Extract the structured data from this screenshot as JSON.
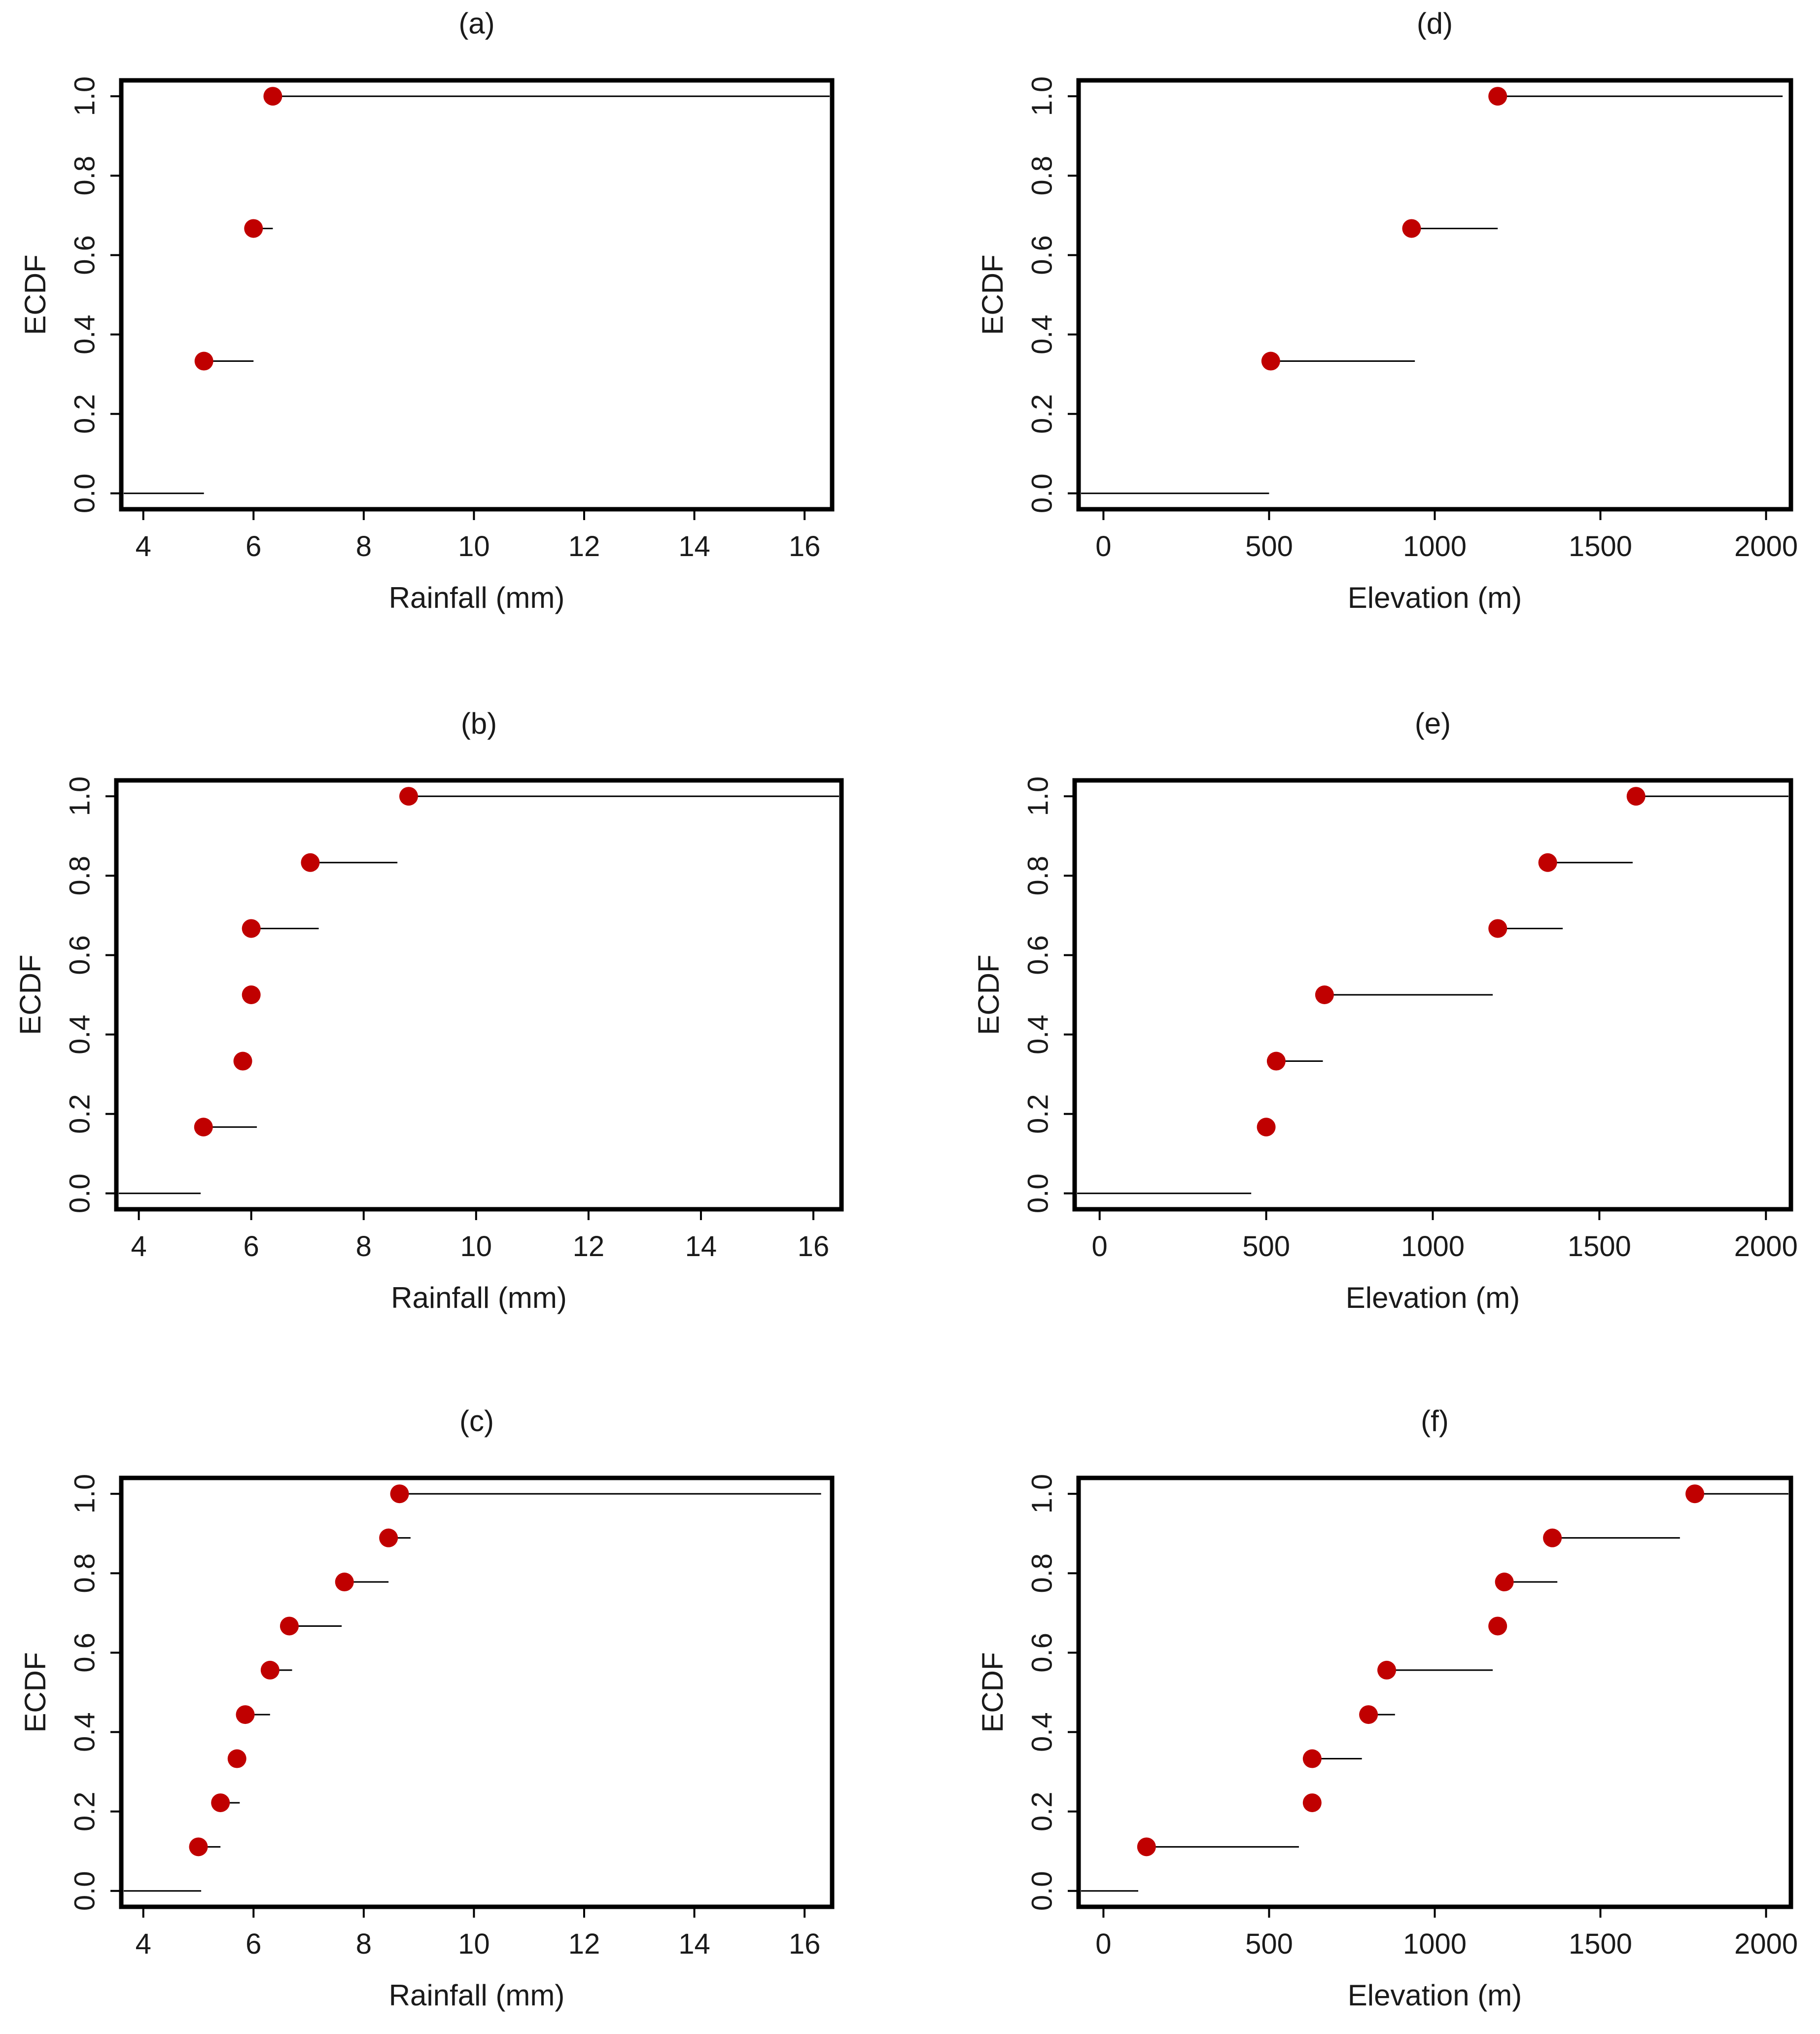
{
  "colors": {
    "point": "#c00000",
    "line": "#000000",
    "frame": "#000000"
  },
  "chart_data": [
    {
      "type": "scatter",
      "subtype": "step-ecdf",
      "title": "(a)",
      "xlabel": "Rainfall (mm)",
      "ylabel": "ECDF",
      "xlim": [
        3.6,
        16.5
      ],
      "ylim": [
        -0.04,
        1.04
      ],
      "xticks": [
        "4",
        "6",
        "8",
        "10",
        "12",
        "14",
        "16"
      ],
      "yticks": [
        "0.0",
        "0.2",
        "0.4",
        "0.6",
        "0.8",
        "1.0"
      ],
      "xtick_values": [
        4,
        6,
        8,
        10,
        12,
        14,
        16
      ],
      "ytick_values": [
        0,
        0.2,
        0.4,
        0.6,
        0.8,
        1.0
      ],
      "lead_in": [
        3.6,
        5.1
      ],
      "points": [
        {
          "x": 5.1,
          "y": 0.333,
          "end": 6.0
        },
        {
          "x": 6.0,
          "y": 0.667,
          "end": 6.35
        },
        {
          "x": 6.35,
          "y": 1.0,
          "end": 16.5
        }
      ]
    },
    {
      "type": "scatter",
      "subtype": "step-ecdf",
      "title": "(b)",
      "xlabel": "Rainfall (mm)",
      "ylabel": "ECDF",
      "xlim": [
        3.6,
        16.5
      ],
      "ylim": [
        -0.04,
        1.04
      ],
      "xticks": [
        "4",
        "6",
        "8",
        "10",
        "12",
        "14",
        "16"
      ],
      "yticks": [
        "0.0",
        "0.2",
        "0.4",
        "0.6",
        "0.8",
        "1.0"
      ],
      "xtick_values": [
        4,
        6,
        8,
        10,
        12,
        14,
        16
      ],
      "ytick_values": [
        0,
        0.2,
        0.4,
        0.6,
        0.8,
        1.0
      ],
      "lead_in": [
        3.6,
        5.1
      ],
      "points": [
        {
          "x": 5.15,
          "y": 0.167,
          "end": 6.1
        },
        {
          "x": 5.85,
          "y": 0.333,
          "end": null
        },
        {
          "x": 6.0,
          "y": 0.5,
          "end": null
        },
        {
          "x": 6.0,
          "y": 0.667,
          "end": 7.2
        },
        {
          "x": 7.05,
          "y": 0.833,
          "end": 8.6
        },
        {
          "x": 8.8,
          "y": 1.0,
          "end": 16.5
        }
      ]
    },
    {
      "type": "scatter",
      "subtype": "step-ecdf",
      "title": "(c)",
      "xlabel": "Rainfall (mm)",
      "ylabel": "ECDF",
      "xlim": [
        3.6,
        16.5
      ],
      "ylim": [
        -0.04,
        1.04
      ],
      "xticks": [
        "4",
        "6",
        "8",
        "10",
        "12",
        "14",
        "16"
      ],
      "yticks": [
        "0.0",
        "0.2",
        "0.4",
        "0.6",
        "0.8",
        "1.0"
      ],
      "xtick_values": [
        4,
        6,
        8,
        10,
        12,
        14,
        16
      ],
      "ytick_values": [
        0,
        0.2,
        0.4,
        0.6,
        0.8,
        1.0
      ],
      "lead_in": [
        3.6,
        5.05
      ],
      "points": [
        {
          "x": 5.0,
          "y": 0.111,
          "end": 5.4
        },
        {
          "x": 5.4,
          "y": 0.222,
          "end": 5.75
        },
        {
          "x": 5.7,
          "y": 0.333,
          "end": null
        },
        {
          "x": 5.85,
          "y": 0.444,
          "end": 6.3
        },
        {
          "x": 6.3,
          "y": 0.556,
          "end": 6.7
        },
        {
          "x": 6.65,
          "y": 0.667,
          "end": 7.6
        },
        {
          "x": 7.65,
          "y": 0.778,
          "end": 8.45
        },
        {
          "x": 8.45,
          "y": 0.889,
          "end": 8.85
        },
        {
          "x": 8.65,
          "y": 1.0,
          "end": 16.3
        }
      ]
    },
    {
      "type": "scatter",
      "subtype": "step-ecdf",
      "title": "(d)",
      "xlabel": "Elevation (m)",
      "ylabel": "ECDF",
      "xlim": [
        -75,
        2075
      ],
      "ylim": [
        -0.04,
        1.04
      ],
      "xticks": [
        "0",
        "500",
        "1000",
        "1500",
        "2000"
      ],
      "yticks": [
        "0.0",
        "0.2",
        "0.4",
        "0.6",
        "0.8",
        "1.0"
      ],
      "xtick_values": [
        0,
        500,
        1000,
        1500,
        2000
      ],
      "ytick_values": [
        0,
        0.2,
        0.4,
        0.6,
        0.8,
        1.0
      ],
      "lead_in": [
        -75,
        500
      ],
      "points": [
        {
          "x": 505,
          "y": 0.333,
          "end": 940
        },
        {
          "x": 930,
          "y": 0.667,
          "end": 1190
        },
        {
          "x": 1190,
          "y": 1.0,
          "end": 2050
        }
      ]
    },
    {
      "type": "scatter",
      "subtype": "step-ecdf",
      "title": "(e)",
      "xlabel": "Elevation (m)",
      "ylabel": "ECDF",
      "xlim": [
        -75,
        2075
      ],
      "ylim": [
        -0.04,
        1.04
      ],
      "xticks": [
        "0",
        "500",
        "1000",
        "1500",
        "2000"
      ],
      "yticks": [
        "0.0",
        "0.2",
        "0.4",
        "0.6",
        "0.8",
        "1.0"
      ],
      "xtick_values": [
        0,
        500,
        1000,
        1500,
        2000
      ],
      "ytick_values": [
        0,
        0.2,
        0.4,
        0.6,
        0.8,
        1.0
      ],
      "lead_in": [
        -75,
        455
      ],
      "points": [
        {
          "x": 500,
          "y": 0.167,
          "end": null
        },
        {
          "x": 530,
          "y": 0.333,
          "end": 670
        },
        {
          "x": 675,
          "y": 0.5,
          "end": 1180
        },
        {
          "x": 1195,
          "y": 0.667,
          "end": 1390
        },
        {
          "x": 1345,
          "y": 0.833,
          "end": 1600
        },
        {
          "x": 1610,
          "y": 1.0,
          "end": 2075
        }
      ]
    },
    {
      "type": "scatter",
      "subtype": "step-ecdf",
      "title": "(f)",
      "xlabel": "Elevation (m)",
      "ylabel": "ECDF",
      "xlim": [
        -75,
        2075
      ],
      "ylim": [
        -0.04,
        1.04
      ],
      "xticks": [
        "0",
        "500",
        "1000",
        "1500",
        "2000"
      ],
      "yticks": [
        "0.0",
        "0.2",
        "0.4",
        "0.6",
        "0.8",
        "1.0"
      ],
      "xtick_values": [
        0,
        500,
        1000,
        1500,
        2000
      ],
      "ytick_values": [
        0,
        0.2,
        0.4,
        0.6,
        0.8,
        1.0
      ],
      "lead_in": [
        -75,
        105
      ],
      "points": [
        {
          "x": 130,
          "y": 0.111,
          "end": 590
        },
        {
          "x": 630,
          "y": 0.222,
          "end": null
        },
        {
          "x": 630,
          "y": 0.333,
          "end": 780
        },
        {
          "x": 800,
          "y": 0.444,
          "end": 880
        },
        {
          "x": 855,
          "y": 0.556,
          "end": 1175
        },
        {
          "x": 1190,
          "y": 0.667,
          "end": null
        },
        {
          "x": 1210,
          "y": 0.778,
          "end": 1370
        },
        {
          "x": 1355,
          "y": 0.889,
          "end": 1740
        },
        {
          "x": 1785,
          "y": 1.0,
          "end": 2075
        }
      ]
    }
  ]
}
